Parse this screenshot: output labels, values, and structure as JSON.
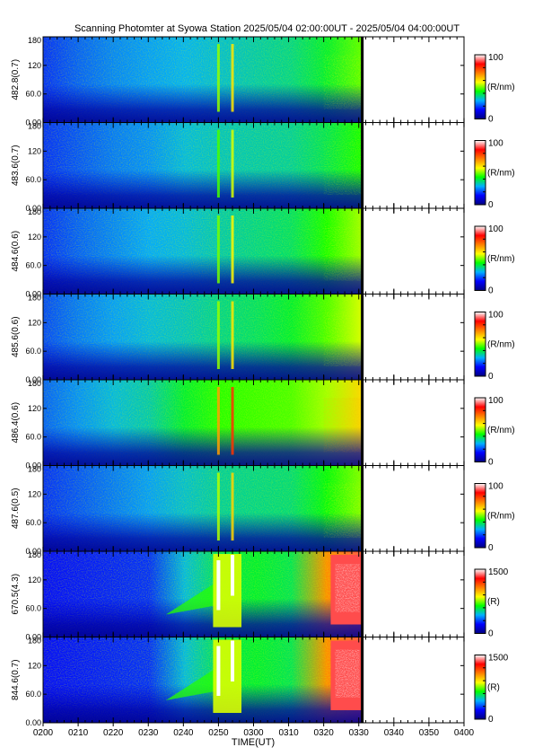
{
  "chart_data": {
    "type": "heatmap",
    "title": "Scanning Photomter at Syowa Station 2025/05/04 02:00:00UT - 2025/05/04 04:00:00UT",
    "xlabel": "TIME(UT)",
    "x_ticks": [
      "0200",
      "0210",
      "0220",
      "0230",
      "0240",
      "0250",
      "0300",
      "0310",
      "0320",
      "0330",
      "0340",
      "0350",
      "0400"
    ],
    "x_range": [
      "0200",
      "0400"
    ],
    "data_end": "0331",
    "y_ticks": [
      "0.00",
      "60.0",
      "120",
      "180"
    ],
    "y_range": [
      0,
      180
    ],
    "colormap": [
      "#000080",
      "#0000ff",
      "#00b0ff",
      "#00ff00",
      "#ffff00",
      "#ff8000",
      "#ff0000",
      "#ffffff"
    ],
    "panels": [
      {
        "ylabel": "482.8(0.7)",
        "colorbar": {
          "min": "0",
          "max": "100",
          "unit": "(R/nm)"
        },
        "intensity": {
          "background": [
            0.18,
            0.22,
            0.25,
            0.27,
            0.29,
            0.31,
            0.33,
            0.35,
            0.4,
            0.48
          ],
          "arc_peak": 0.6,
          "kind": "line"
        }
      },
      {
        "ylabel": "483.6(0.7)",
        "colorbar": {
          "min": "0",
          "max": "100",
          "unit": "(R/nm)"
        },
        "intensity": {
          "background": [
            0.18,
            0.21,
            0.24,
            0.26,
            0.3,
            0.32,
            0.33,
            0.34,
            0.38,
            0.44
          ],
          "arc_peak": 0.55,
          "kind": "line"
        }
      },
      {
        "ylabel": "484.6(0.6)",
        "colorbar": {
          "min": "0",
          "max": "100",
          "unit": "(R/nm)"
        },
        "intensity": {
          "background": [
            0.18,
            0.22,
            0.25,
            0.28,
            0.3,
            0.33,
            0.35,
            0.37,
            0.44,
            0.52
          ],
          "arc_peak": 0.58,
          "kind": "line"
        }
      },
      {
        "ylabel": "485.6(0.6)",
        "colorbar": {
          "min": "0",
          "max": "100",
          "unit": "(R/nm)"
        },
        "intensity": {
          "background": [
            0.2,
            0.24,
            0.27,
            0.3,
            0.32,
            0.35,
            0.37,
            0.4,
            0.47,
            0.55
          ],
          "arc_peak": 0.6,
          "kind": "line"
        }
      },
      {
        "ylabel": "486.4(0.6)",
        "colorbar": {
          "min": "0",
          "max": "100",
          "unit": "(R/nm)"
        },
        "intensity": {
          "background": [
            0.22,
            0.26,
            0.3,
            0.33,
            0.4,
            0.45,
            0.46,
            0.47,
            0.52,
            0.62
          ],
          "arc_peak": 0.8,
          "kind": "line"
        }
      },
      {
        "ylabel": "487.6(0.5)",
        "colorbar": {
          "min": "0",
          "max": "100",
          "unit": "(R/nm)"
        },
        "intensity": {
          "background": [
            0.18,
            0.21,
            0.24,
            0.27,
            0.31,
            0.34,
            0.35,
            0.36,
            0.42,
            0.5
          ],
          "arc_peak": 0.62,
          "kind": "line"
        }
      },
      {
        "ylabel": "670.5(4.3)",
        "colorbar": {
          "min": "0",
          "max": "1500",
          "unit": "(R)"
        },
        "intensity": {
          "background": [
            0.15,
            0.16,
            0.17,
            0.18,
            0.3,
            0.38,
            0.4,
            0.38,
            0.7,
            0.9
          ],
          "arc_peak": 1.0,
          "kind": "band"
        }
      },
      {
        "ylabel": "844.6(0.7)",
        "colorbar": {
          "min": "0",
          "max": "1500",
          "unit": "(R)"
        },
        "intensity": {
          "background": [
            0.15,
            0.16,
            0.17,
            0.18,
            0.3,
            0.38,
            0.4,
            0.38,
            0.7,
            0.9
          ],
          "arc_peak": 1.0,
          "kind": "band"
        }
      }
    ]
  }
}
